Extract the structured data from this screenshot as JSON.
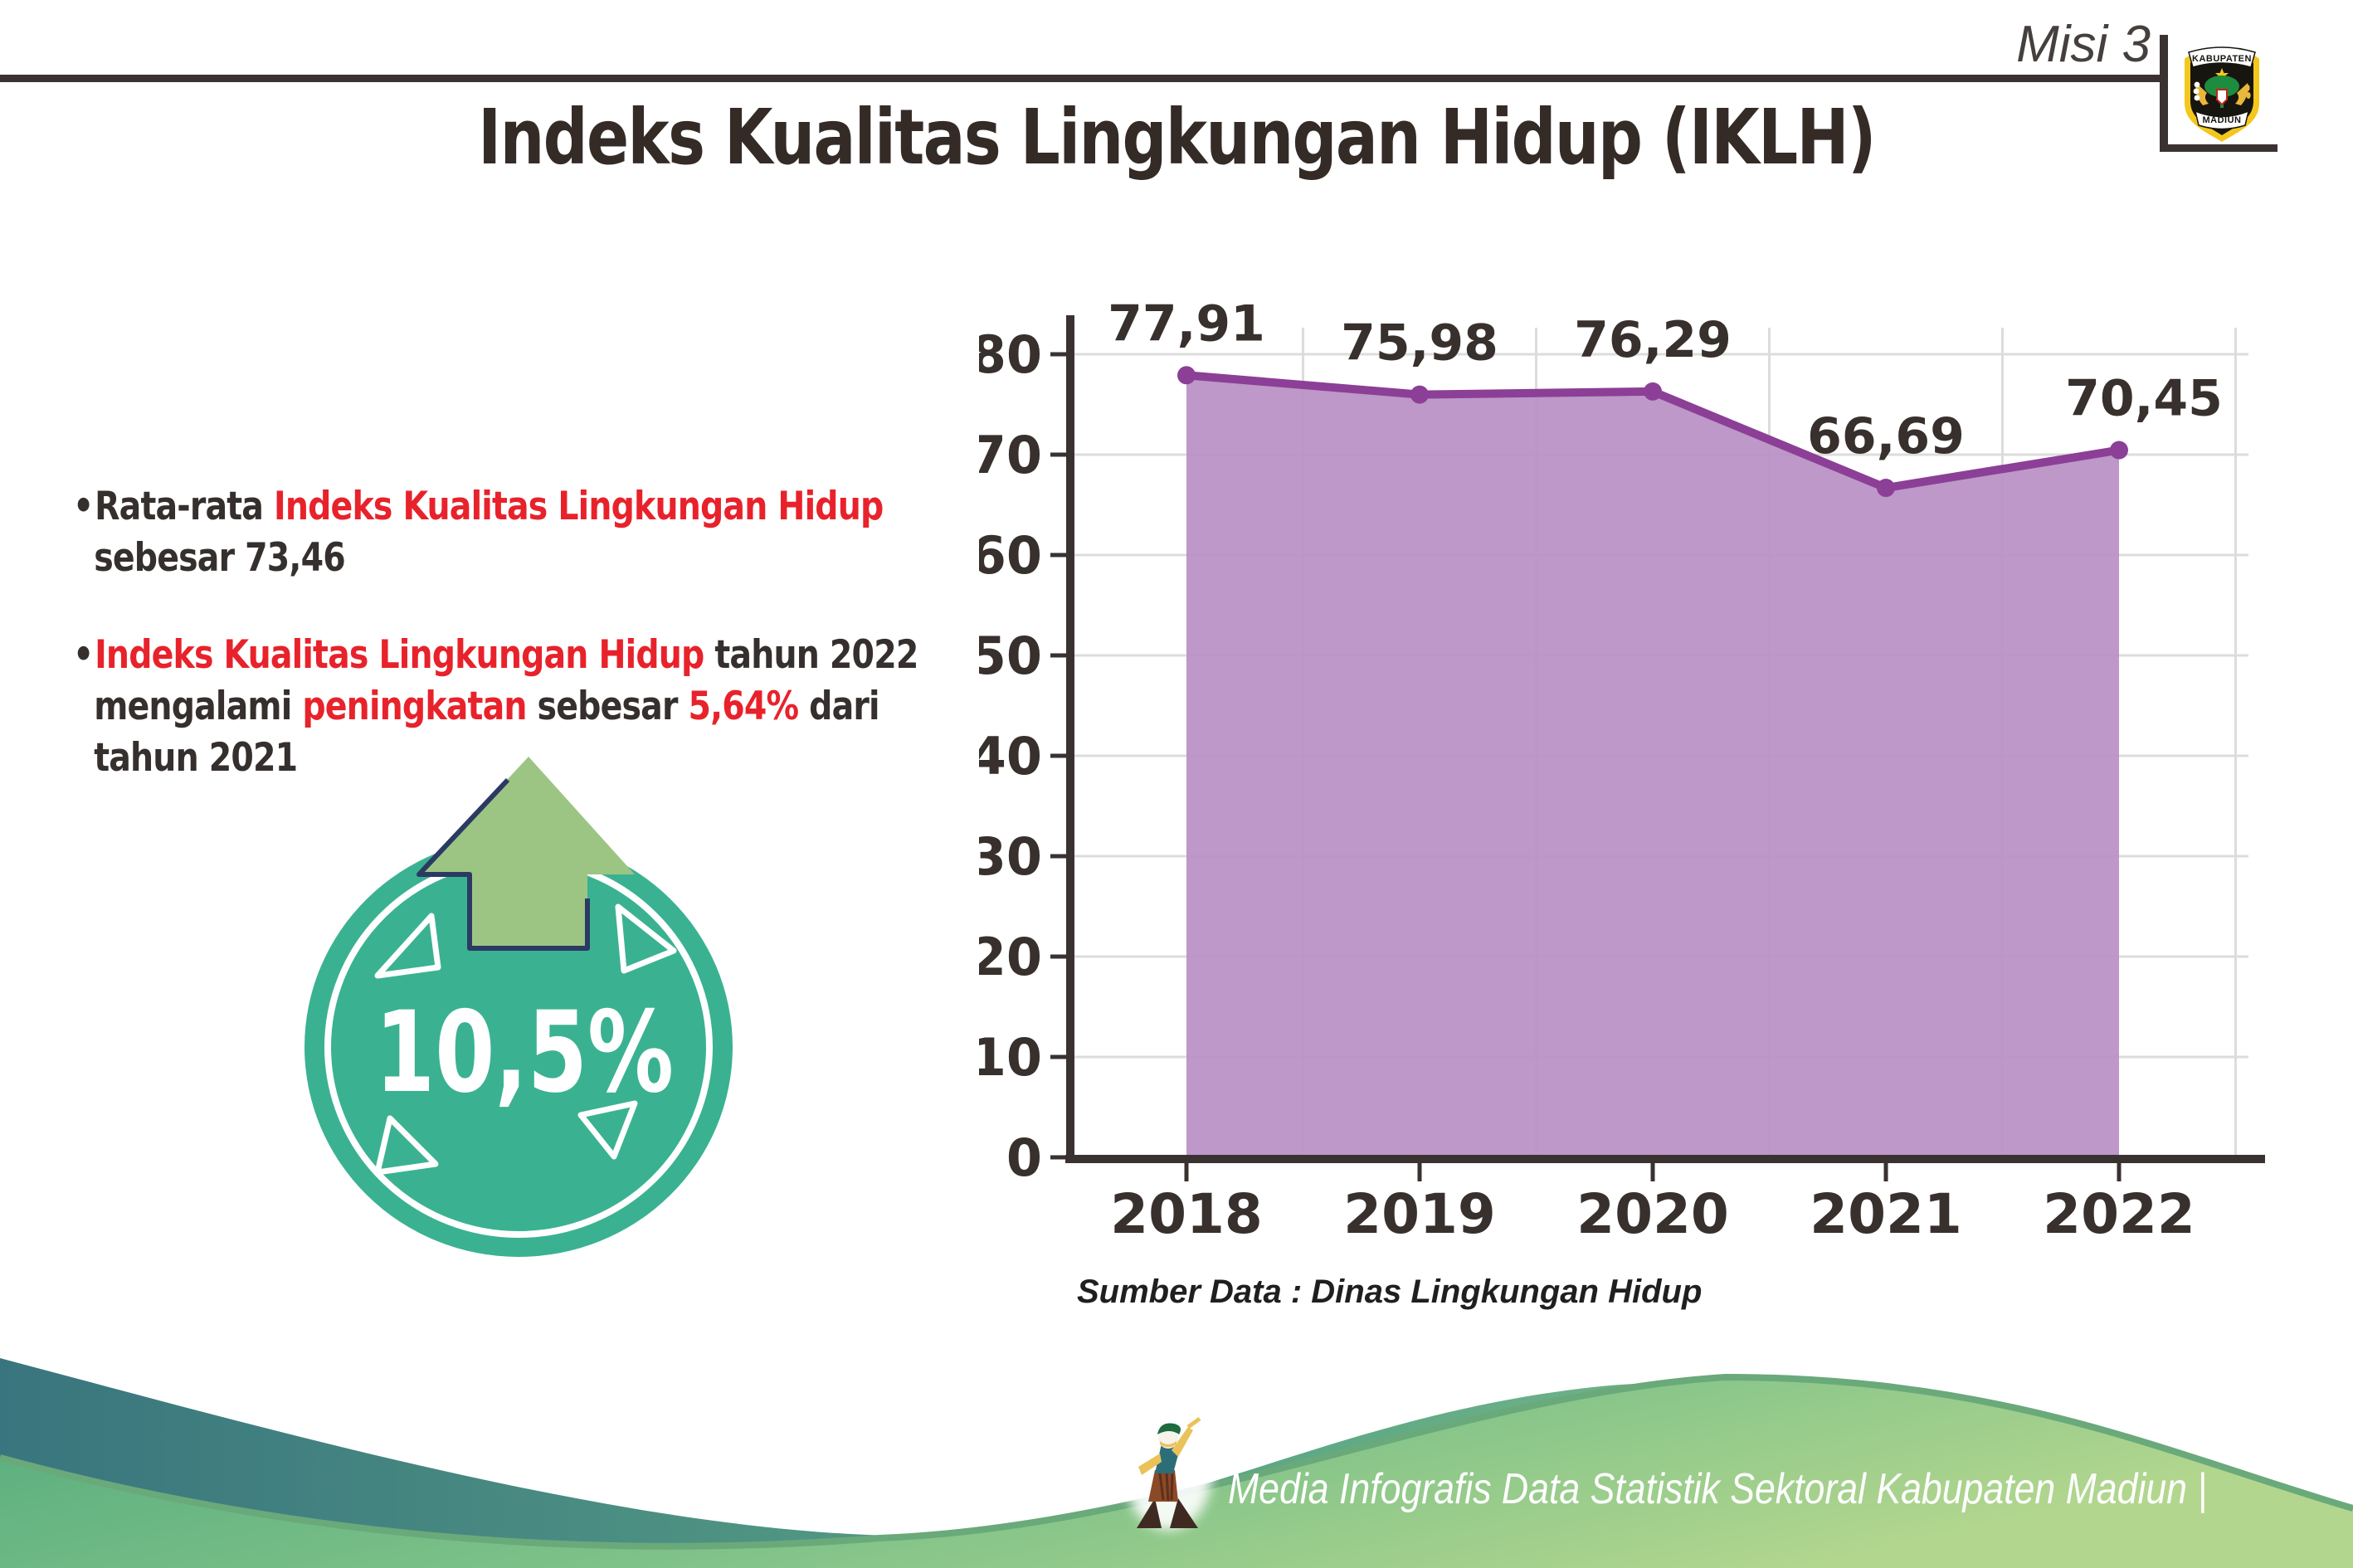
{
  "header": {
    "misi_label": "Misi 3",
    "title": "Indeks Kualitas Lingkungan Hidup (IKLH)"
  },
  "logo": {
    "top_text": "KABUPATEN",
    "bottom_text": "MADIUN"
  },
  "bullets": [
    {
      "lines": [
        [
          {
            "t": "Rata-rata ",
            "c": "dark"
          },
          {
            "t": "Indeks Kualitas Lingkungan Hidup",
            "c": "red"
          }
        ],
        [
          {
            "t": "sebesar 73,46",
            "c": "dark"
          }
        ]
      ]
    },
    {
      "lines": [
        [
          {
            "t": "Indeks Kualitas Lingkungan Hidup",
            "c": "red"
          },
          {
            "t": " tahun 2022",
            "c": "dark"
          }
        ],
        [
          {
            "t": "mengalami ",
            "c": "dark"
          },
          {
            "t": "peningkatan",
            "c": "red"
          },
          {
            "t": " sebesar ",
            "c": "dark"
          },
          {
            "t": "5,64%",
            "c": "red"
          },
          {
            "t": " dari",
            "c": "dark"
          }
        ],
        [
          {
            "t": "tahun 2021",
            "c": "dark"
          }
        ]
      ]
    }
  ],
  "badge": {
    "value": "10,5%"
  },
  "chart_data": {
    "type": "area",
    "categories": [
      "2018",
      "2019",
      "2020",
      "2021",
      "2022"
    ],
    "values": [
      77.91,
      75.98,
      76.29,
      66.69,
      70.45
    ],
    "point_labels": [
      "77,91",
      "75,98",
      "76,29",
      "66,69",
      "70,45"
    ],
    "title": "",
    "xlabel": "",
    "ylabel": "",
    "ylim": [
      0,
      80
    ],
    "ytick_step": 10,
    "grid": true,
    "legend": false,
    "source_note": "Sumber Data : Dinas Lingkungan Hidup",
    "colors": {
      "area": "#b78fc4",
      "line": "#8c3f96",
      "marker": "#8c3f96",
      "text": "#37302d",
      "grid": "#dcdcdc",
      "axis": "#3a3231"
    }
  },
  "badge_colors": {
    "circle": "#3ab291",
    "arrow": "#9cc584",
    "arrow_outline": "#2b3a63"
  },
  "footer": {
    "text": "Media Infografis Data Statistik Sektoral Kabupaten Madiun |"
  }
}
